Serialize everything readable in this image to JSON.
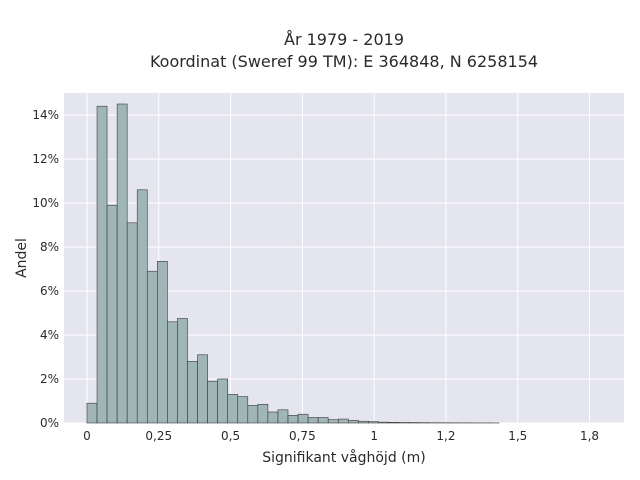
{
  "chart_data": {
    "type": "bar",
    "title_line1": "År 1979 - 2019",
    "title_line2": "Koordinat (Sweref 99 TM): E 364848, N 6258154",
    "xlabel": "Signifikant våghöjd (m)",
    "ylabel": "Andel",
    "xlim": [
      -0.08,
      1.87
    ],
    "ylim": [
      0,
      15
    ],
    "bin_width": 0.035,
    "bin_start": 0.0,
    "values": [
      0.9,
      14.4,
      9.9,
      14.5,
      9.1,
      10.6,
      6.9,
      7.35,
      4.6,
      4.75,
      2.8,
      3.1,
      1.9,
      2.0,
      1.3,
      1.2,
      0.8,
      0.85,
      0.5,
      0.6,
      0.35,
      0.4,
      0.25,
      0.25,
      0.15,
      0.18,
      0.12,
      0.08,
      0.06,
      0.04,
      0.03,
      0.02,
      0.02,
      0.015,
      0.01,
      0.01,
      0.008,
      0.006,
      0.005,
      0.004,
      0.003
    ],
    "x_ticks": [
      {
        "value": 0,
        "label": "0"
      },
      {
        "value": 0.25,
        "label": "0,25"
      },
      {
        "value": 0.5,
        "label": "0,5"
      },
      {
        "value": 0.75,
        "label": "0,75"
      },
      {
        "value": 1.0,
        "label": "1"
      },
      {
        "value": 1.25,
        "label": "1,2"
      },
      {
        "value": 1.5,
        "label": "1,5"
      },
      {
        "value": 1.75,
        "label": "1,8"
      }
    ],
    "y_ticks": [
      {
        "value": 0,
        "label": "0%"
      },
      {
        "value": 2,
        "label": "2%"
      },
      {
        "value": 4,
        "label": "4%"
      },
      {
        "value": 6,
        "label": "6%"
      },
      {
        "value": 8,
        "label": "8%"
      },
      {
        "value": 10,
        "label": "10%"
      },
      {
        "value": 12,
        "label": "12%"
      },
      {
        "value": 14,
        "label": "14%"
      }
    ],
    "grid": true,
    "legend": "none",
    "colors": {
      "bar_fill": "#9fb5b6",
      "bar_edge": "#3a3a3a",
      "plot_bg": "#e5e5f0"
    }
  }
}
